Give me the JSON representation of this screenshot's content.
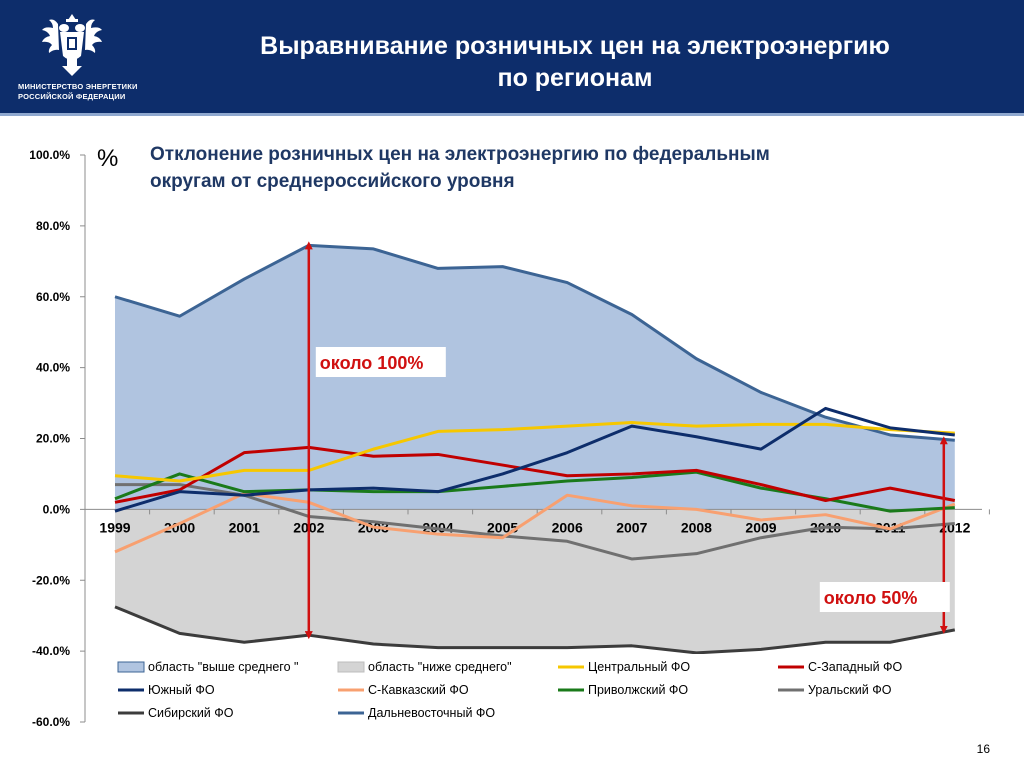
{
  "header": {
    "ministry_line1": "МИНИСТЕРСТВО ЭНЕРГЕТИКИ",
    "ministry_line2": "РОССИЙСКОЙ ФЕДЕРАЦИИ",
    "title_line1": "Выравнивание розничных цен на электроэнергию",
    "title_line2": "по регионам",
    "header_color": "#0d2d6b"
  },
  "page_number": "16",
  "chart_data": {
    "type": "line",
    "title_line1": "Отклонение розничных цен на электроэнергию по федеральным",
    "title_line2": "округам от среднероссийского уровня",
    "unit_symbol": "%",
    "categories": [
      "1999",
      "2000",
      "2001",
      "2002",
      "2003",
      "2004",
      "2005",
      "2006",
      "2007",
      "2008",
      "2009",
      "2010",
      "2011",
      "2012"
    ],
    "ylim": [
      -60,
      100
    ],
    "yticks": [
      100,
      80,
      60,
      40,
      20,
      0,
      -20,
      -40,
      -60
    ],
    "ytick_labels": [
      "100.0%",
      "80.0%",
      "60.0%",
      "40.0%",
      "20.0%",
      "0.0%",
      "-20.0%",
      "-40.0%",
      "-60.0%"
    ],
    "areas": [
      {
        "name": "область \"выше среднего \"",
        "color": "#b0c4e0",
        "series_ref": "Дальневосточный ФО"
      },
      {
        "name": "область \"ниже среднего\"",
        "color": "#d4d4d4",
        "series_ref": "Сибирский ФО"
      }
    ],
    "series": [
      {
        "name": "Центральный ФО",
        "color": "#f6c700",
        "values": [
          9.5,
          8,
          11,
          11,
          17,
          22,
          22.5,
          23.5,
          24.5,
          23.5,
          24,
          24,
          22.5,
          21.5
        ]
      },
      {
        "name": "С-Западный ФО",
        "color": "#c00000",
        "values": [
          2,
          5.5,
          16,
          17.5,
          15,
          15.5,
          12.5,
          9.5,
          10,
          11,
          7,
          2.5,
          6,
          2.5
        ]
      },
      {
        "name": "Южный ФО",
        "color": "#0d2d6b",
        "values": [
          -0.5,
          5,
          4,
          5.5,
          6,
          5,
          10,
          16,
          23.5,
          20.5,
          17,
          28.5,
          23,
          21
        ]
      },
      {
        "name": "С-Кавказский ФО",
        "color": "#f8a070",
        "values": [
          -12,
          -4,
          4.5,
          2,
          -5,
          -7,
          -8,
          4,
          1,
          0,
          -3,
          -1.5,
          -5.5,
          1.5
        ]
      },
      {
        "name": "Приволжский ФО",
        "color": "#1a7a1a",
        "values": [
          3,
          10,
          5,
          5.5,
          5,
          5,
          6.5,
          8,
          9,
          10.5,
          6,
          3,
          -0.5,
          0.5
        ]
      },
      {
        "name": "Уральский ФО",
        "color": "#707070",
        "values": [
          7,
          7,
          4,
          -2,
          -3.5,
          -5.5,
          -7.5,
          -9,
          -14,
          -12.5,
          -8,
          -5,
          -5.5,
          -4
        ]
      },
      {
        "name": "Сибирский ФО",
        "color": "#3c3c3c",
        "values": [
          -27.5,
          -35,
          -37.5,
          -35.5,
          -38,
          -39,
          -39,
          -39,
          -38.5,
          -40.5,
          -39.5,
          -37.5,
          -37.5,
          -34
        ]
      },
      {
        "name": "Дальневосточный ФО",
        "color": "#3c6494",
        "values": [
          60,
          54.5,
          65,
          74.5,
          73.5,
          68,
          68.5,
          64,
          55,
          42.5,
          33,
          26,
          21,
          19.5
        ]
      }
    ],
    "annotations": [
      {
        "text": "около 100%",
        "color": "#d01010",
        "category": "2002",
        "from": -35.5,
        "to": 74.5
      },
      {
        "text": "около 50%",
        "color": "#d01010",
        "category": "2012",
        "from": -34,
        "to": 19.5
      }
    ],
    "legend_placement": "bottom",
    "grid": false
  }
}
